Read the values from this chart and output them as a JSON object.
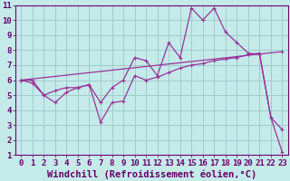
{
  "title": "",
  "xlabel": "Windchill (Refroidissement éolien,°C)",
  "ylabel": "",
  "background_color": "#c5eaea",
  "grid_color": "#a0cccc",
  "line_color": "#993399",
  "xlim": [
    -0.5,
    23.5
  ],
  "ylim": [
    1,
    11
  ],
  "xticks": [
    0,
    1,
    2,
    3,
    4,
    5,
    6,
    7,
    8,
    9,
    10,
    11,
    12,
    13,
    14,
    15,
    16,
    17,
    18,
    19,
    20,
    21,
    22,
    23
  ],
  "yticks": [
    1,
    2,
    3,
    4,
    5,
    6,
    7,
    8,
    9,
    10,
    11
  ],
  "curve1_x": [
    0,
    1,
    2,
    3,
    4,
    5,
    6,
    7,
    8,
    9,
    10,
    11,
    12,
    13,
    14,
    15,
    16,
    17,
    18,
    19,
    20,
    21,
    22,
    23
  ],
  "curve1_y": [
    6.0,
    6.0,
    5.0,
    5.3,
    5.5,
    5.5,
    5.7,
    4.5,
    5.5,
    6.0,
    7.5,
    7.3,
    6.3,
    8.5,
    7.5,
    10.8,
    10.0,
    10.8,
    9.2,
    8.5,
    7.8,
    7.7,
    3.5,
    2.7
  ],
  "curve2_x": [
    0,
    1,
    2,
    3,
    4,
    5,
    6,
    7,
    8,
    9,
    10,
    11,
    12,
    13,
    14,
    15,
    16,
    17,
    18,
    19,
    20,
    21,
    22,
    23
  ],
  "curve2_y": [
    6.0,
    5.8,
    5.0,
    4.5,
    5.2,
    5.5,
    5.7,
    3.2,
    4.5,
    4.6,
    6.3,
    6.0,
    6.2,
    6.5,
    6.8,
    7.0,
    7.1,
    7.3,
    7.4,
    7.5,
    7.7,
    7.8,
    3.5,
    1.2
  ],
  "curve3_x": [
    0,
    23
  ],
  "curve3_y": [
    6.0,
    7.9
  ],
  "tick_fontsize": 6.5,
  "xlabel_fontsize": 7.5,
  "marker_size": 2.5,
  "line_width": 0.9
}
